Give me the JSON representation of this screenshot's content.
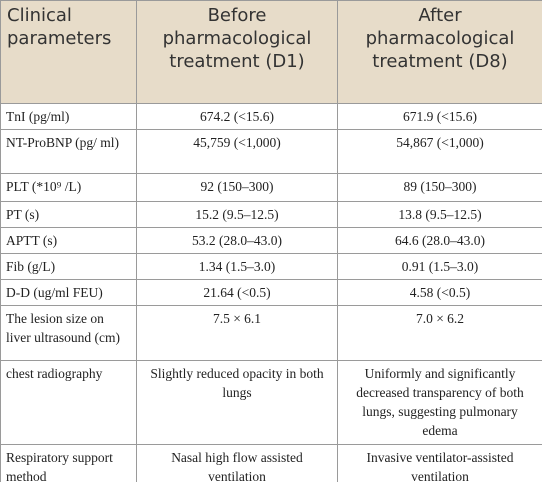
{
  "table": {
    "header": [
      "Clinical parameters",
      "Before pharmacological treatment (D1)",
      "After pharmacological treatment (D8)"
    ],
    "rows": [
      [
        "TnI (pg/ml)",
        "674.2 (<15.6)",
        "671.9 (<15.6)"
      ],
      [
        "NT-ProBNP (pg/ ml)",
        "45,759 (<1,000)",
        "54,867 (<1,000)"
      ],
      [
        "PLT (*10⁹ /L)",
        "92 (150–300)",
        "89 (150–300)"
      ],
      [
        "PT (s)",
        "15.2 (9.5–12.5)",
        "13.8 (9.5–12.5)"
      ],
      [
        "APTT (s)",
        "53.2 (28.0–43.0)",
        "64.6 (28.0–43.0)"
      ],
      [
        "Fib (g/L)",
        "1.34 (1.5–3.0)",
        "0.91 (1.5–3.0)"
      ],
      [
        "D-D (ug/ml FEU)",
        "21.64 (<0.5)",
        "4.58 (<0.5)"
      ],
      [
        "The lesion size on liver ultrasound (cm)",
        "7.5 × 6.1",
        "7.0 × 6.2"
      ],
      [
        "chest radiography",
        "Slightly reduced opacity in both lungs",
        "Uniformly and significantly decreased transparency of both lungs, suggesting pulmonary edema"
      ],
      [
        "Respiratory support method",
        "Nasal high flow assisted ventilation",
        "Invasive ventilator-assisted ventilation"
      ]
    ]
  }
}
